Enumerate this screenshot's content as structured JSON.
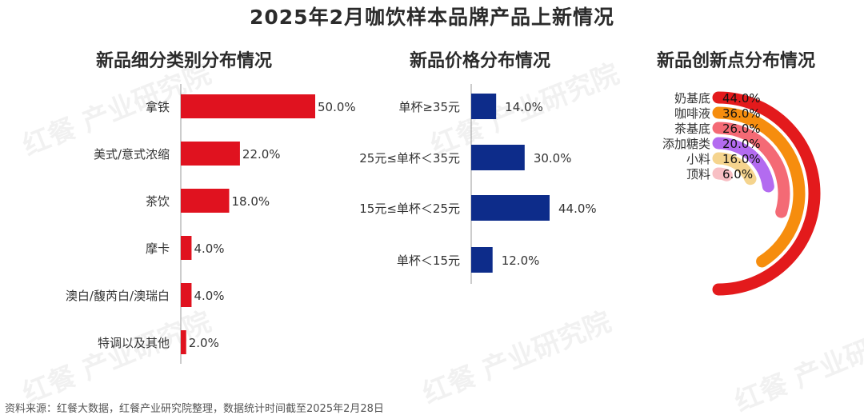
{
  "title": "2025年2月咖饮样本品牌产品上新情况",
  "source": "资料来源：红餐大数据，红餐产业研究院整理，数据统计时间截至2025年2月28日",
  "watermark": "红餐 产业研究院",
  "colors": {
    "red": "#e0121f",
    "navy": "#0d2c8a",
    "radial": [
      "#e31a1c",
      "#f68d0e",
      "#f46a75",
      "#b36bf0",
      "#f5d48e",
      "#f8bfc4"
    ]
  },
  "chart_data": [
    {
      "type": "bar",
      "orientation": "horizontal",
      "title": "新品细分类别分布情况",
      "categories": [
        "拿铁",
        "美式/意式浓缩",
        "茶饮",
        "摩卡",
        "澳白/馥芮白/澳瑞白",
        "特调以及其他"
      ],
      "values": [
        50.0,
        22.0,
        18.0,
        4.0,
        4.0,
        2.0
      ],
      "value_labels": [
        "50.0%",
        "22.0%",
        "18.0%",
        "4.0%",
        "4.0%",
        "2.0%"
      ],
      "xlim": [
        0,
        50
      ],
      "grid": false,
      "color": "#e0121f"
    },
    {
      "type": "bar",
      "orientation": "horizontal",
      "title": "新品价格分布情况",
      "categories": [
        "单杯≥35元",
        "25元≤单杯＜35元",
        "15元≤单杯＜25元",
        "单杯＜15元"
      ],
      "values": [
        14.0,
        30.0,
        44.0,
        12.0
      ],
      "value_labels": [
        "14.0%",
        "30.0%",
        "44.0%",
        "12.0%"
      ],
      "xlim": [
        0,
        44
      ],
      "grid": false,
      "color": "#0d2c8a"
    },
    {
      "type": "radial-bar",
      "title": "新品创新点分布情况",
      "categories": [
        "奶基底",
        "咖啡液",
        "茶基底",
        "添加糖类",
        "小料",
        "顶料"
      ],
      "values": [
        44.0,
        36.0,
        26.0,
        20.0,
        16.0,
        6.0
      ],
      "value_labels": [
        "44.0%",
        "36.0%",
        "26.0%",
        "20.0%",
        "16.0%",
        "6.0%"
      ],
      "max": 44.0,
      "grid": false
    }
  ]
}
